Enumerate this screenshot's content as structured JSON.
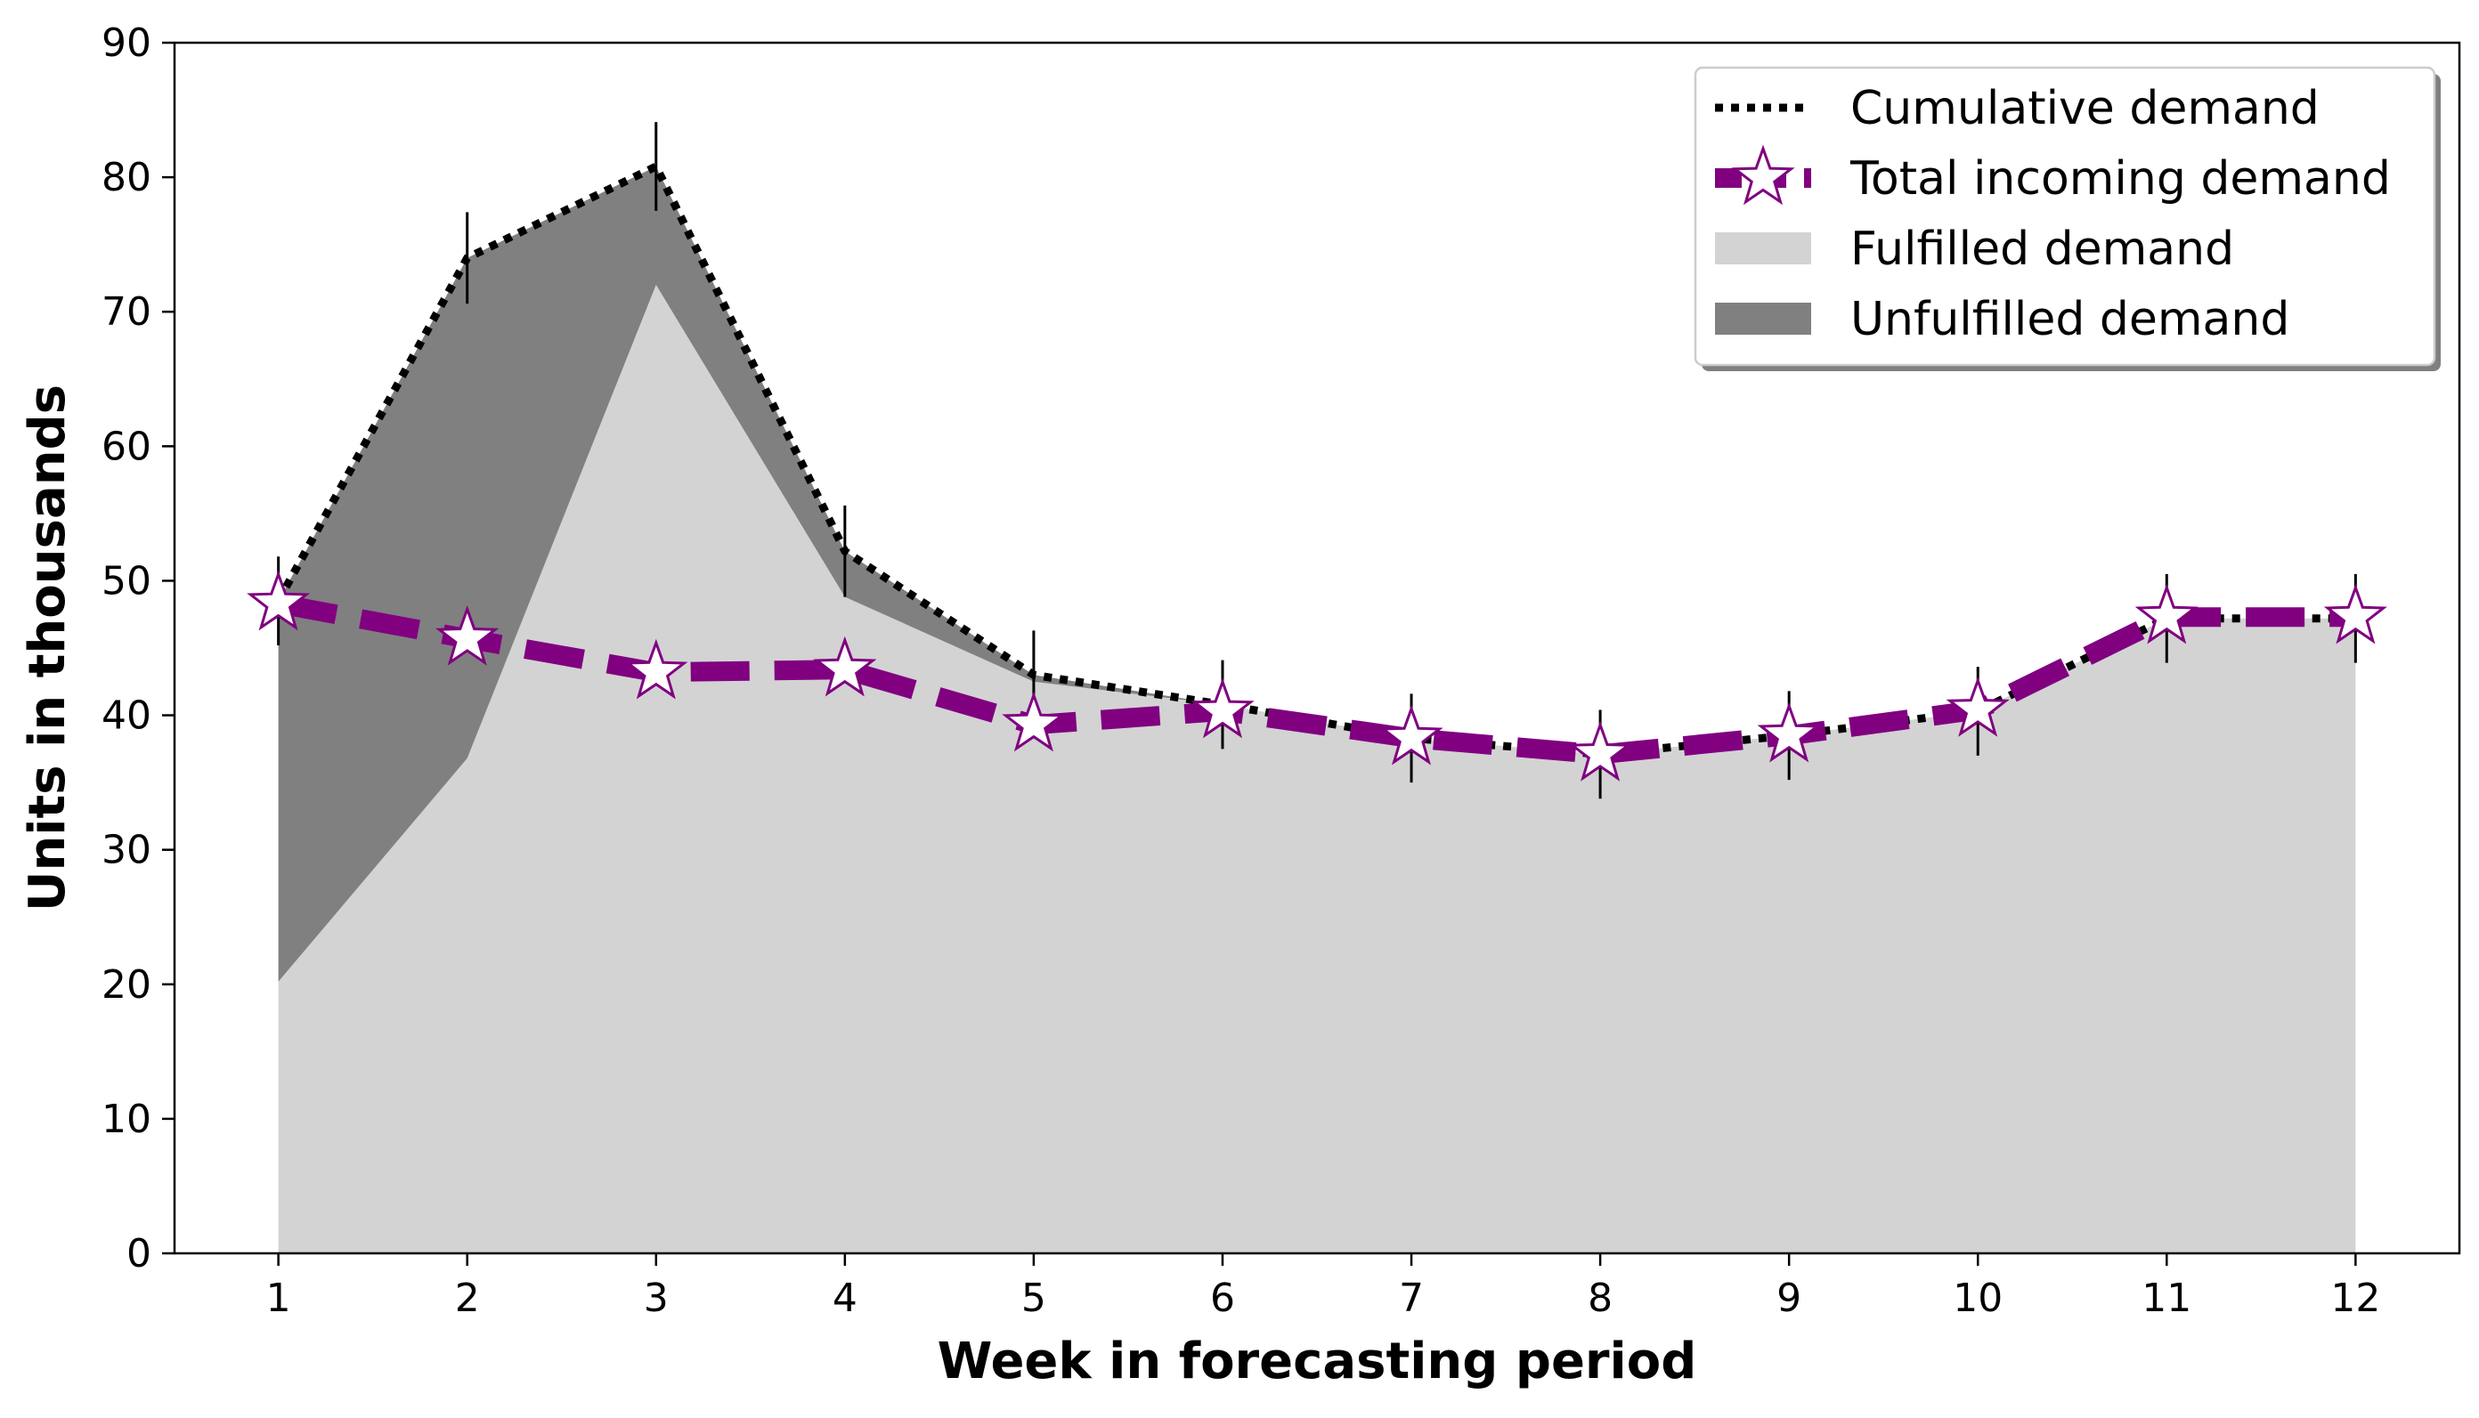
{
  "chart_data": {
    "type": "area",
    "title": "",
    "xlabel": "Week in forecasting period",
    "ylabel": "Units in thousands",
    "xlim": [
      0.45,
      12.55
    ],
    "ylim": [
      0,
      90
    ],
    "x_ticks": [
      1,
      2,
      3,
      4,
      5,
      6,
      7,
      8,
      9,
      10,
      11,
      12
    ],
    "y_ticks": [
      0,
      10,
      20,
      30,
      40,
      50,
      60,
      70,
      80,
      90
    ],
    "grid": false,
    "legend_position": "top-right",
    "x": [
      1,
      2,
      3,
      4,
      5,
      6,
      7,
      8,
      9,
      10,
      11,
      12
    ],
    "series": [
      {
        "name": "Cumulative demand",
        "kind": "line",
        "style": "dotted",
        "color": "#000000",
        "values": [
          48.5,
          74.0,
          80.8,
          52.2,
          43.0,
          40.8,
          38.3,
          37.1,
          38.5,
          40.3,
          47.2,
          47.2
        ],
        "error": [
          3.3,
          3.4,
          3.3,
          3.4,
          3.3,
          3.3,
          3.3,
          3.3,
          3.3,
          3.3,
          3.3,
          3.3
        ]
      },
      {
        "name": "Total incoming demand",
        "kind": "line",
        "style": "dashed",
        "marker": "star",
        "color": "#800080",
        "values": [
          48.3,
          45.7,
          43.2,
          43.4,
          39.3,
          40.3,
          38.3,
          37.1,
          38.5,
          40.4,
          47.3,
          47.3
        ]
      },
      {
        "name": "Fulfilled demand",
        "kind": "area",
        "color": "#d3d3d3",
        "values": [
          20.2,
          36.8,
          72.0,
          48.8,
          42.5,
          40.8,
          38.3,
          37.1,
          38.5,
          40.3,
          47.2,
          47.2
        ]
      },
      {
        "name": "Unfulfilled demand",
        "kind": "area",
        "color": "#808080",
        "values": [
          28.3,
          37.2,
          8.8,
          3.4,
          0.5,
          0,
          0,
          0,
          0,
          0,
          0,
          0
        ]
      }
    ],
    "legend": [
      "Cumulative demand",
      "Total incoming demand",
      "Fulfilled demand",
      "Unfulfilled demand"
    ]
  }
}
